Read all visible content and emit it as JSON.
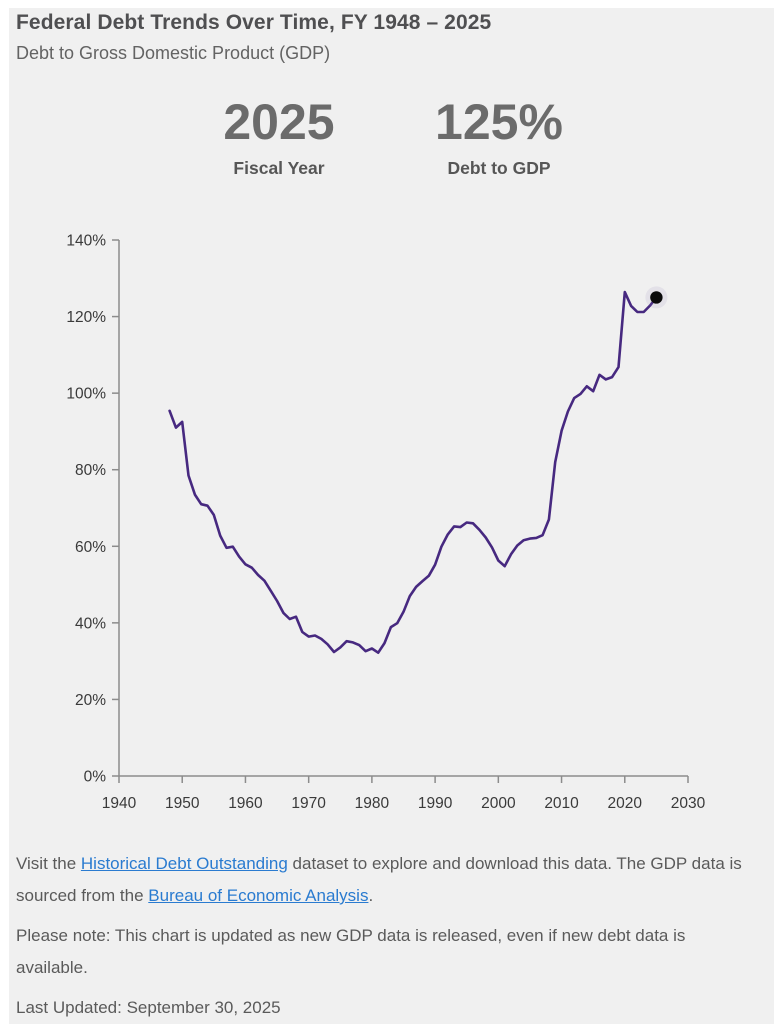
{
  "header": {
    "title": "Federal Debt Trends Over Time, FY 1948 – 2025",
    "subtitle": "Debt to Gross Domestic Product (GDP)"
  },
  "stats": [
    {
      "value": "2025",
      "label": "Fiscal Year"
    },
    {
      "value": "125%",
      "label": "Debt to GDP"
    }
  ],
  "chart_data": {
    "type": "line",
    "title": "Debt to GDP by fiscal year",
    "xlabel": "",
    "ylabel": "",
    "xlim": [
      1940,
      2030
    ],
    "ylim": [
      0,
      140
    ],
    "grid": false,
    "legend": false,
    "x_ticks": [
      1940,
      1950,
      1960,
      1970,
      1980,
      1990,
      2000,
      2010,
      2020,
      2030
    ],
    "x_tick_labels": [
      "1940",
      "1950",
      "1960",
      "1970",
      "1980",
      "1990",
      "2000",
      "2010",
      "2020",
      "2030"
    ],
    "y_ticks": [
      0,
      20,
      40,
      60,
      80,
      100,
      120,
      140
    ],
    "y_tick_labels": [
      "0%",
      "20%",
      "40%",
      "60%",
      "80%",
      "100%",
      "120%",
      "140%"
    ],
    "series": [
      {
        "name": "Debt to GDP",
        "color": "#472980",
        "x": [
          1948,
          1949,
          1950,
          1951,
          1952,
          1953,
          1954,
          1955,
          1956,
          1957,
          1958,
          1959,
          1960,
          1961,
          1962,
          1963,
          1964,
          1965,
          1966,
          1967,
          1968,
          1969,
          1970,
          1971,
          1972,
          1973,
          1974,
          1975,
          1976,
          1977,
          1978,
          1979,
          1980,
          1981,
          1982,
          1983,
          1984,
          1985,
          1986,
          1987,
          1988,
          1989,
          1990,
          1991,
          1992,
          1993,
          1994,
          1995,
          1996,
          1997,
          1998,
          1999,
          2000,
          2001,
          2002,
          2003,
          2004,
          2005,
          2006,
          2007,
          2008,
          2009,
          2010,
          2011,
          2012,
          2013,
          2014,
          2015,
          2016,
          2017,
          2018,
          2019,
          2020,
          2021,
          2022,
          2023,
          2024,
          2025
        ],
        "values": [
          95.4,
          91.0,
          92.5,
          78.5,
          73.5,
          71.0,
          70.6,
          68.2,
          62.8,
          59.6,
          59.9,
          57.3,
          55.3,
          54.4,
          52.5,
          51.0,
          48.4,
          45.7,
          42.6,
          41.0,
          41.6,
          37.6,
          36.4,
          36.7,
          35.8,
          34.4,
          32.4,
          33.6,
          35.2,
          34.9,
          34.2,
          32.6,
          33.3,
          32.2,
          34.7,
          38.9,
          39.9,
          42.9,
          47.0,
          49.4,
          50.9,
          52.3,
          55.2,
          59.9,
          63.1,
          65.2,
          65.0,
          66.2,
          66.0,
          64.3,
          62.3,
          59.7,
          56.3,
          54.8,
          57.9,
          60.2,
          61.6,
          62.0,
          62.2,
          62.9,
          67.0,
          82.0,
          90.2,
          95.2,
          98.7,
          99.8,
          101.8,
          100.5,
          104.8,
          103.6,
          104.2,
          106.8,
          126.4,
          122.8,
          121.2,
          121.2,
          122.9,
          125.0
        ]
      }
    ],
    "end_marker": {
      "x": 2025,
      "y": 125.0,
      "color": "#0b0b0b"
    },
    "axis_color": "#8c8c8c"
  },
  "footer": {
    "p1": {
      "pre": "Visit the ",
      "link1": "Historical Debt Outstanding",
      "mid": " dataset to explore and download this data. The GDP data is sourced from the ",
      "link2": "Bureau of Economic Analysis",
      "post": "."
    },
    "p2": "Please note: This chart is updated as new GDP data is released, even if new debt data is available.",
    "p3": "Last Updated: September 30, 2025"
  }
}
